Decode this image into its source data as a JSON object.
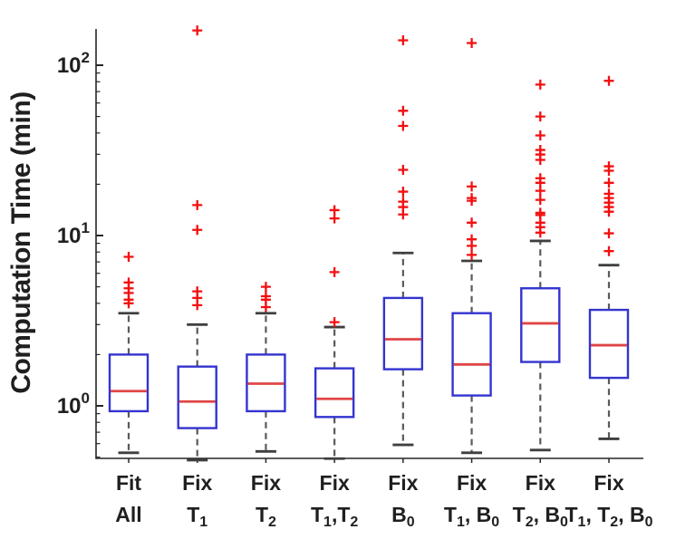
{
  "chart_data": {
    "type": "boxplot",
    "title": "",
    "xlabel": "",
    "ylabel": "Computation Time (min)",
    "yscale": "log",
    "ylim": [
      0.47,
      163
    ],
    "y_ticks": [
      1,
      10,
      100
    ],
    "y_tick_labels": [
      "10^0",
      "10^1",
      "10^2"
    ],
    "grid": false,
    "outlier_marker": "+",
    "legend": "none",
    "categories": [
      "Fit All",
      "Fix T_1",
      "Fix T_2",
      "Fix T_1,T_2",
      "Fix B_0",
      "Fix T_1, B_0",
      "Fix T_2, B_0",
      "Fix T_1, T_2, B_0"
    ],
    "boxes": [
      {
        "label_line1": "Fit",
        "label_line2": "All",
        "whisker_low": 0.53,
        "q1": 0.93,
        "median": 1.22,
        "q3": 2.0,
        "whisker_high": 3.5,
        "outliers": [
          4.0,
          4.2,
          4.6,
          4.9,
          5.3,
          7.5
        ]
      },
      {
        "label_line1": "Fix",
        "label_line2": "T_1",
        "whisker_low": 0.48,
        "q1": 0.74,
        "median": 1.06,
        "q3": 1.7,
        "whisker_high": 3.0,
        "outliers": [
          3.9,
          4.3,
          4.7,
          10.8,
          15.1,
          160
        ]
      },
      {
        "label_line1": "Fix",
        "label_line2": "T_2",
        "whisker_low": 0.54,
        "q1": 0.93,
        "median": 1.35,
        "q3": 2.0,
        "whisker_high": 3.5,
        "outliers": [
          3.8,
          4.2,
          4.4,
          5.0
        ]
      },
      {
        "label_line1": "Fix",
        "label_line2": "T_1,T_2",
        "whisker_low": 0.49,
        "q1": 0.86,
        "median": 1.1,
        "q3": 1.66,
        "whisker_high": 2.9,
        "outliers": [
          3.1,
          6.1,
          12.6,
          14.1
        ]
      },
      {
        "label_line1": "Fix",
        "label_line2": "B_0",
        "whisker_low": 0.59,
        "q1": 1.64,
        "median": 2.46,
        "q3": 4.3,
        "whisker_high": 7.9,
        "outliers": [
          13.3,
          14.7,
          15.8,
          18.1,
          24.3,
          44,
          54,
          140
        ]
      },
      {
        "label_line1": "Fix",
        "label_line2": "T_1, B_0",
        "whisker_low": 0.53,
        "q1": 1.15,
        "median": 1.75,
        "q3": 3.5,
        "whisker_high": 7.1,
        "outliers": [
          7.7,
          8.7,
          9.5,
          11.9,
          16.0,
          16.6,
          19.4,
          135
        ]
      },
      {
        "label_line1": "Fix",
        "label_line2": "T_2, B_0",
        "whisker_low": 0.55,
        "q1": 1.81,
        "median": 3.05,
        "q3": 4.9,
        "whisker_high": 9.3,
        "outliers": [
          10.4,
          11.2,
          11.9,
          13.2,
          13.6,
          16.2,
          18.3,
          20.4,
          21.7,
          27.8,
          29.9,
          31.8,
          38.7,
          50,
          77
        ]
      },
      {
        "label_line1": "Fix",
        "label_line2": "T_1, T_2, B_0",
        "whisker_low": 0.64,
        "q1": 1.46,
        "median": 2.27,
        "q3": 3.66,
        "whisker_high": 6.7,
        "outliers": [
          8.1,
          10.3,
          13.8,
          14.7,
          15.6,
          16.6,
          17.6,
          20.4,
          24.0,
          25.5,
          81
        ]
      }
    ],
    "colors": {
      "box": "#3434d0",
      "median": "#e04545",
      "outlier": "#f40f0f",
      "whisker": "#5a5a5a",
      "whisker_cap": "#3f3f3f",
      "axis": "#262626",
      "text": "#1f1f1f"
    }
  }
}
